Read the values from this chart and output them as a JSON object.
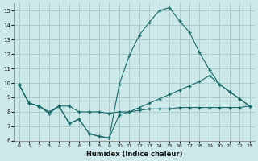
{
  "xlabel": "Humidex (Indice chaleur)",
  "bg_color": "#cce8e8",
  "grid_color": "#aacccc",
  "line_color": "#1a6b6b",
  "xlim": [
    -0.5,
    23.5
  ],
  "ylim": [
    6,
    15.5
  ],
  "xticks": [
    0,
    1,
    2,
    3,
    4,
    5,
    6,
    7,
    8,
    9,
    10,
    11,
    12,
    13,
    14,
    15,
    16,
    17,
    18,
    19,
    20,
    21,
    22,
    23
  ],
  "yticks": [
    6,
    7,
    8,
    9,
    10,
    11,
    12,
    13,
    14,
    15
  ],
  "series": [
    {
      "x": [
        0,
        1,
        2,
        3,
        4,
        5,
        6,
        7,
        8,
        9,
        10,
        11,
        12,
        13,
        14,
        15,
        16,
        17,
        18,
        19,
        20,
        21,
        22,
        23
      ],
      "y": [
        9.9,
        8.6,
        8.4,
        8.0,
        8.4,
        8.4,
        8.0,
        8.0,
        8.0,
        7.9,
        8.0,
        8.0,
        8.1,
        8.2,
        8.2,
        8.2,
        8.3,
        8.3,
        8.3,
        8.3,
        8.3,
        8.3,
        8.3,
        8.4
      ]
    },
    {
      "x": [
        0,
        1,
        2,
        3,
        4,
        5,
        6,
        7,
        8,
        9,
        10,
        11,
        12,
        13,
        14,
        15,
        16,
        17,
        18,
        19,
        20,
        21,
        22,
        23
      ],
      "y": [
        9.9,
        8.6,
        8.4,
        7.9,
        8.4,
        7.2,
        7.5,
        6.5,
        6.3,
        6.2,
        7.8,
        8.0,
        8.3,
        8.6,
        8.9,
        9.2,
        9.5,
        9.8,
        10.1,
        10.5,
        9.9,
        9.4,
        8.9,
        8.4
      ]
    },
    {
      "x": [
        0,
        1,
        2,
        3,
        4,
        5,
        6,
        7,
        8,
        9,
        10,
        11,
        12,
        13,
        14,
        15,
        16,
        17,
        18,
        19,
        20,
        21,
        22,
        23
      ],
      "y": [
        9.9,
        8.6,
        8.4,
        7.9,
        8.4,
        7.2,
        7.5,
        6.5,
        6.3,
        6.2,
        9.9,
        11.9,
        13.3,
        14.2,
        15.0,
        15.2,
        14.3,
        13.5,
        12.1,
        10.9,
        9.9,
        9.4,
        8.9,
        8.4
      ]
    }
  ]
}
